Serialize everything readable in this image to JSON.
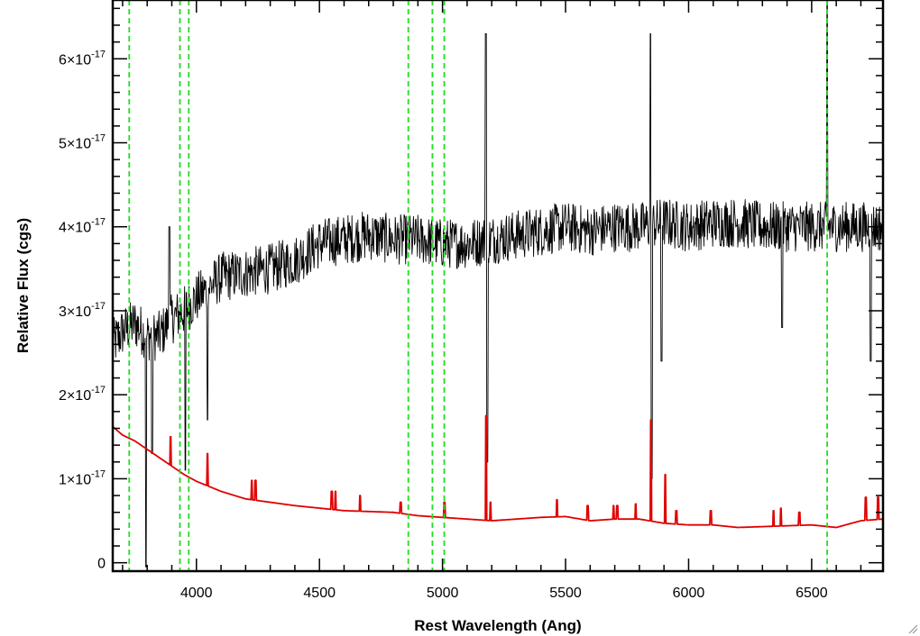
{
  "chart_data": {
    "type": "line",
    "title": "",
    "xlabel": "Rest Wavelength (Ang)",
    "ylabel": "Relative Flux (cgs)",
    "xlim": [
      3660,
      6790
    ],
    "ylim": [
      -1e-18,
      6.7e-17
    ],
    "x_ticks": [
      4000,
      4500,
      5000,
      5500,
      6000,
      6500
    ],
    "x_tick_labels": [
      "4000",
      "4500",
      "5000",
      "5500",
      "6000",
      "6500"
    ],
    "y_ticks": [
      0,
      1e-17,
      2e-17,
      3e-17,
      4e-17,
      5e-17,
      6e-17
    ],
    "y_tick_labels": [
      {
        "mant": "0",
        "exp": ""
      },
      {
        "mant": "1×10",
        "exp": "-17"
      },
      {
        "mant": "2×10",
        "exp": "-17"
      },
      {
        "mant": "3×10",
        "exp": "-17"
      },
      {
        "mant": "4×10",
        "exp": "-17"
      },
      {
        "mant": "5×10",
        "exp": "-17"
      },
      {
        "mant": "6×10",
        "exp": "-17"
      }
    ],
    "grid": false,
    "legend": "none",
    "vertical_lines": [
      3727,
      3933,
      3969,
      4861,
      4959,
      5007,
      6563
    ],
    "series": [
      {
        "color": "#000000",
        "style": "noisy spectrum",
        "x": [
          3660,
          3700,
          3750,
          3800,
          3850,
          3900,
          3950,
          4000,
          4100,
          4200,
          4300,
          4400,
          4500,
          4600,
          4700,
          4800,
          4900,
          5000,
          5100,
          5200,
          5300,
          5400,
          5500,
          5600,
          5700,
          5800,
          5900,
          6000,
          6100,
          6200,
          6300,
          6400,
          6500,
          6600,
          6700,
          6790
        ],
        "y": [
          2.6e-17,
          2.75e-17,
          2.85e-17,
          2.7e-17,
          2.7e-17,
          2.9e-17,
          3e-17,
          3.15e-17,
          3.4e-17,
          3.45e-17,
          3.5e-17,
          3.6e-17,
          3.8e-17,
          3.85e-17,
          3.9e-17,
          3.85e-17,
          3.85e-17,
          3.8e-17,
          3.8e-17,
          3.85e-17,
          3.9e-17,
          3.95e-17,
          4e-17,
          3.95e-17,
          4e-17,
          4e-17,
          4.05e-17,
          4e-17,
          4.05e-17,
          4.05e-17,
          4e-17,
          4e-17,
          4e-17,
          4e-17,
          4e-17,
          4e-17
        ],
        "noise": 3e-18,
        "features": [
          {
            "x": 3795,
            "y": -5e-19
          },
          {
            "x": 3820,
            "y": 1.3e-17
          },
          {
            "x": 3890,
            "y": 4e-17
          },
          {
            "x": 3955,
            "y": 1.1e-17
          },
          {
            "x": 4045,
            "y": 1.7e-17
          },
          {
            "x": 5176,
            "y": 6.3e-17
          },
          {
            "x": 5182,
            "y": 1.2e-17
          },
          {
            "x": 5845,
            "y": 6.3e-17
          },
          {
            "x": 5850,
            "y": 1e-17
          },
          {
            "x": 5890,
            "y": 2.4e-17
          },
          {
            "x": 6380,
            "y": 2.8e-17
          },
          {
            "x": 6563,
            "y": 6.8e-17
          },
          {
            "x": 6740,
            "y": 2.4e-17
          }
        ]
      },
      {
        "color": "#e00000",
        "style": "smooth spectrum",
        "x": [
          3660,
          3700,
          3750,
          3800,
          3850,
          3900,
          3950,
          4000,
          4100,
          4200,
          4300,
          4400,
          4500,
          4600,
          4700,
          4800,
          4900,
          5000,
          5100,
          5200,
          5300,
          5400,
          5500,
          5600,
          5700,
          5800,
          5900,
          6000,
          6100,
          6200,
          6300,
          6400,
          6500,
          6600,
          6700,
          6790
        ],
        "y": [
          1.62e-17,
          1.52e-17,
          1.45e-17,
          1.35e-17,
          1.25e-17,
          1.15e-17,
          1.05e-17,
          9.7e-18,
          8.5e-18,
          7.6e-18,
          7.2e-18,
          6.8e-18,
          6.5e-18,
          6.2e-18,
          6.1e-18,
          6e-18,
          5.6e-18,
          5.4e-18,
          5.2e-18,
          5e-18,
          5.2e-18,
          5.4e-18,
          5.5e-18,
          5e-18,
          5.2e-18,
          5.2e-18,
          4.7e-18,
          4.5e-18,
          4.5e-18,
          4.2e-18,
          4.3e-18,
          4.4e-18,
          4.5e-18,
          4.2e-18,
          5e-18,
          5.2e-18
        ],
        "features": [
          {
            "x": 3895,
            "y": 1.5e-17
          },
          {
            "x": 4045,
            "y": 1.3e-17
          },
          {
            "x": 4225,
            "y": 9.8e-18
          },
          {
            "x": 4240,
            "y": 9.8e-18
          },
          {
            "x": 4550,
            "y": 8.5e-18
          },
          {
            "x": 4565,
            "y": 8.5e-18
          },
          {
            "x": 4665,
            "y": 8e-18
          },
          {
            "x": 4830,
            "y": 7.2e-18
          },
          {
            "x": 5008,
            "y": 7.2e-18
          },
          {
            "x": 5177,
            "y": 1.75e-17
          },
          {
            "x": 5195,
            "y": 7.2e-18
          },
          {
            "x": 5465,
            "y": 7.5e-18
          },
          {
            "x": 5590,
            "y": 6.8e-18
          },
          {
            "x": 5695,
            "y": 6.8e-18
          },
          {
            "x": 5710,
            "y": 6.8e-18
          },
          {
            "x": 5785,
            "y": 7e-18
          },
          {
            "x": 5847,
            "y": 1.7e-17
          },
          {
            "x": 5905,
            "y": 1.05e-17
          },
          {
            "x": 5950,
            "y": 6.2e-18
          },
          {
            "x": 6090,
            "y": 6.2e-18
          },
          {
            "x": 6345,
            "y": 6.2e-18
          },
          {
            "x": 6375,
            "y": 6.5e-18
          },
          {
            "x": 6450,
            "y": 6e-18
          },
          {
            "x": 6720,
            "y": 7.8e-18
          },
          {
            "x": 6770,
            "y": 7.8e-18
          }
        ]
      }
    ]
  }
}
